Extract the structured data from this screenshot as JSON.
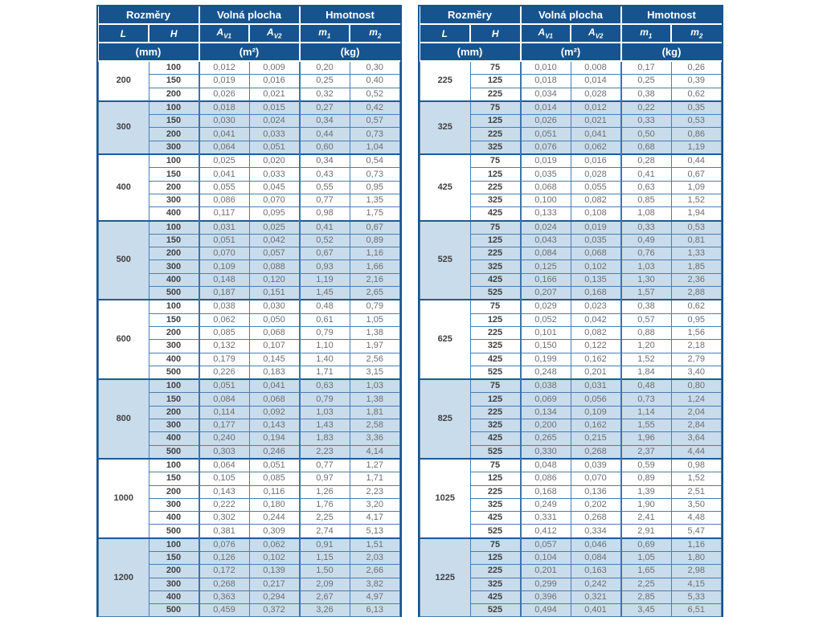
{
  "colors": {
    "header_bg": "#17548F",
    "stripe_bg": "#C9DCEC",
    "outer_border": "#17548F",
    "inner_border": "#4A7DB0",
    "header_text": "#FFFFFF",
    "label_text": "#414042",
    "value_text": "#6D6E70"
  },
  "header": {
    "groups": [
      {
        "label": "Rozměry"
      },
      {
        "label": "Volná plocha"
      },
      {
        "label": "Hmotnost"
      }
    ],
    "columns": [
      {
        "base": "L",
        "sub": ""
      },
      {
        "base": "H",
        "sub": ""
      },
      {
        "base": "A",
        "sub": "V1"
      },
      {
        "base": "A",
        "sub": "V2"
      },
      {
        "base": "m",
        "sub": "1"
      },
      {
        "base": "m",
        "sub": "2"
      }
    ],
    "units": [
      "(mm)",
      "(m²)",
      "(kg)"
    ]
  },
  "tables": [
    {
      "name": "left-table",
      "groups": [
        {
          "L": "200",
          "rows": [
            [
              "100",
              "0,012",
              "0,009",
              "0,20",
              "0,30"
            ],
            [
              "150",
              "0,019",
              "0,016",
              "0,25",
              "0,40"
            ],
            [
              "200",
              "0,026",
              "0,021",
              "0,32",
              "0,52"
            ]
          ]
        },
        {
          "L": "300",
          "rows": [
            [
              "100",
              "0,018",
              "0,015",
              "0,27",
              "0,42"
            ],
            [
              "150",
              "0,030",
              "0,024",
              "0,34",
              "0,57"
            ],
            [
              "200",
              "0,041",
              "0,033",
              "0,44",
              "0,73"
            ],
            [
              "300",
              "0,064",
              "0,051",
              "0,60",
              "1,04"
            ]
          ]
        },
        {
          "L": "400",
          "rows": [
            [
              "100",
              "0,025",
              "0,020",
              "0,34",
              "0,54"
            ],
            [
              "150",
              "0,041",
              "0,033",
              "0,43",
              "0,73"
            ],
            [
              "200",
              "0,055",
              "0,045",
              "0,55",
              "0,95"
            ],
            [
              "300",
              "0,086",
              "0,070",
              "0,77",
              "1,35"
            ],
            [
              "400",
              "0,117",
              "0,095",
              "0,98",
              "1,75"
            ]
          ]
        },
        {
          "L": "500",
          "rows": [
            [
              "100",
              "0,031",
              "0,025",
              "0,41",
              "0,67"
            ],
            [
              "150",
              "0,051",
              "0,042",
              "0,52",
              "0,89"
            ],
            [
              "200",
              "0,070",
              "0,057",
              "0,67",
              "1,16"
            ],
            [
              "300",
              "0,109",
              "0,088",
              "0,93",
              "1,66"
            ],
            [
              "400",
              "0,148",
              "0,120",
              "1,19",
              "2,16"
            ],
            [
              "500",
              "0,187",
              "0,151",
              "1,45",
              "2,65"
            ]
          ]
        },
        {
          "L": "600",
          "rows": [
            [
              "100",
              "0,038",
              "0,030",
              "0,48",
              "0,79"
            ],
            [
              "150",
              "0,062",
              "0,050",
              "0,61",
              "1,05"
            ],
            [
              "200",
              "0,085",
              "0,068",
              "0,79",
              "1,38"
            ],
            [
              "300",
              "0,132",
              "0,107",
              "1,10",
              "1,97"
            ],
            [
              "400",
              "0,179",
              "0,145",
              "1,40",
              "2,56"
            ],
            [
              "500",
              "0,226",
              "0,183",
              "1,71",
              "3,15"
            ]
          ]
        },
        {
          "L": "800",
          "rows": [
            [
              "100",
              "0,051",
              "0,041",
              "0,63",
              "1,03"
            ],
            [
              "150",
              "0,084",
              "0,068",
              "0,79",
              "1,38"
            ],
            [
              "200",
              "0,114",
              "0,092",
              "1,03",
              "1,81"
            ],
            [
              "300",
              "0,177",
              "0,143",
              "1,43",
              "2,58"
            ],
            [
              "400",
              "0,240",
              "0,194",
              "1,83",
              "3,36"
            ],
            [
              "500",
              "0,303",
              "0,246",
              "2,23",
              "4,14"
            ]
          ]
        },
        {
          "L": "1000",
          "rows": [
            [
              "100",
              "0,064",
              "0,051",
              "0,77",
              "1,27"
            ],
            [
              "150",
              "0,105",
              "0,085",
              "0,97",
              "1,71"
            ],
            [
              "200",
              "0,143",
              "0,116",
              "1,26",
              "2,23"
            ],
            [
              "300",
              "0,222",
              "0,180",
              "1,76",
              "3,20"
            ],
            [
              "400",
              "0,302",
              "0,244",
              "2,25",
              "4,17"
            ],
            [
              "500",
              "0,381",
              "0,309",
              "2,74",
              "5,13"
            ]
          ]
        },
        {
          "L": "1200",
          "rows": [
            [
              "100",
              "0,076",
              "0,062",
              "0,91",
              "1,51"
            ],
            [
              "150",
              "0,126",
              "0,102",
              "1,15",
              "2,03"
            ],
            [
              "200",
              "0,172",
              "0,139",
              "1,50",
              "2,66"
            ],
            [
              "300",
              "0,268",
              "0,217",
              "2,09",
              "3,82"
            ],
            [
              "400",
              "0,363",
              "0,294",
              "2,67",
              "4,97"
            ],
            [
              "500",
              "0,459",
              "0,372",
              "3,26",
              "6,13"
            ]
          ]
        }
      ]
    },
    {
      "name": "right-table",
      "groups": [
        {
          "L": "225",
          "rows": [
            [
              "75",
              "0,010",
              "0,008",
              "0,17",
              "0,26"
            ],
            [
              "125",
              "0,018",
              "0,014",
              "0,25",
              "0,39"
            ],
            [
              "225",
              "0,034",
              "0,028",
              "0,38",
              "0,62"
            ]
          ]
        },
        {
          "L": "325",
          "rows": [
            [
              "75",
              "0,014",
              "0,012",
              "0,22",
              "0,35"
            ],
            [
              "125",
              "0,026",
              "0,021",
              "0,33",
              "0,53"
            ],
            [
              "225",
              "0,051",
              "0,041",
              "0,50",
              "0,86"
            ],
            [
              "325",
              "0,076",
              "0,062",
              "0,68",
              "1,19"
            ]
          ]
        },
        {
          "L": "425",
          "rows": [
            [
              "75",
              "0,019",
              "0,016",
              "0,28",
              "0,44"
            ],
            [
              "125",
              "0,035",
              "0,028",
              "0,41",
              "0,67"
            ],
            [
              "225",
              "0,068",
              "0,055",
              "0,63",
              "1,09"
            ],
            [
              "325",
              "0,100",
              "0,082",
              "0,85",
              "1,52"
            ],
            [
              "425",
              "0,133",
              "0,108",
              "1,08",
              "1,94"
            ]
          ]
        },
        {
          "L": "525",
          "rows": [
            [
              "75",
              "0,024",
              "0,019",
              "0,33",
              "0,53"
            ],
            [
              "125",
              "0,043",
              "0,035",
              "0,49",
              "0,81"
            ],
            [
              "225",
              "0,084",
              "0,068",
              "0,76",
              "1,33"
            ],
            [
              "325",
              "0,125",
              "0,102",
              "1,03",
              "1,85"
            ],
            [
              "425",
              "0,166",
              "0,135",
              "1,30",
              "2,36"
            ],
            [
              "525",
              "0,207",
              "0,168",
              "1,57",
              "2,88"
            ]
          ]
        },
        {
          "L": "625",
          "rows": [
            [
              "75",
              "0,029",
              "0,023",
              "0,38",
              "0,62"
            ],
            [
              "125",
              "0,052",
              "0,042",
              "0,57",
              "0,95"
            ],
            [
              "225",
              "0,101",
              "0,082",
              "0,88",
              "1,56"
            ],
            [
              "325",
              "0,150",
              "0,122",
              "1,20",
              "2,18"
            ],
            [
              "425",
              "0,199",
              "0,162",
              "1,52",
              "2,79"
            ],
            [
              "525",
              "0,248",
              "0,201",
              "1,84",
              "3,40"
            ]
          ]
        },
        {
          "L": "825",
          "rows": [
            [
              "75",
              "0,038",
              "0,031",
              "0,48",
              "0,80"
            ],
            [
              "125",
              "0,069",
              "0,056",
              "0,73",
              "1,24"
            ],
            [
              "225",
              "0,134",
              "0,109",
              "1,14",
              "2,04"
            ],
            [
              "325",
              "0,200",
              "0,162",
              "1,55",
              "2,84"
            ],
            [
              "425",
              "0,265",
              "0,215",
              "1,96",
              "3,64"
            ],
            [
              "525",
              "0,330",
              "0,268",
              "2,37",
              "4,44"
            ]
          ]
        },
        {
          "L": "1025",
          "rows": [
            [
              "75",
              "0,048",
              "0,039",
              "0,59",
              "0,98"
            ],
            [
              "125",
              "0,086",
              "0,070",
              "0,89",
              "1,52"
            ],
            [
              "225",
              "0,168",
              "0,136",
              "1,39",
              "2,51"
            ],
            [
              "325",
              "0,249",
              "0,202",
              "1,90",
              "3,50"
            ],
            [
              "425",
              "0,331",
              "0,268",
              "2,41",
              "4,48"
            ],
            [
              "525",
              "0,412",
              "0,334",
              "2,91",
              "5,47"
            ]
          ]
        },
        {
          "L": "1225",
          "rows": [
            [
              "75",
              "0,057",
              "0,046",
              "0,69",
              "1,16"
            ],
            [
              "125",
              "0,104",
              "0,084",
              "1,05",
              "1,80"
            ],
            [
              "225",
              "0,201",
              "0,163",
              "1,65",
              "2,98"
            ],
            [
              "325",
              "0,299",
              "0,242",
              "2,25",
              "4,15"
            ],
            [
              "425",
              "0,396",
              "0,321",
              "2,85",
              "5,33"
            ],
            [
              "525",
              "0,494",
              "0,401",
              "3,45",
              "6,51"
            ]
          ]
        }
      ]
    }
  ]
}
